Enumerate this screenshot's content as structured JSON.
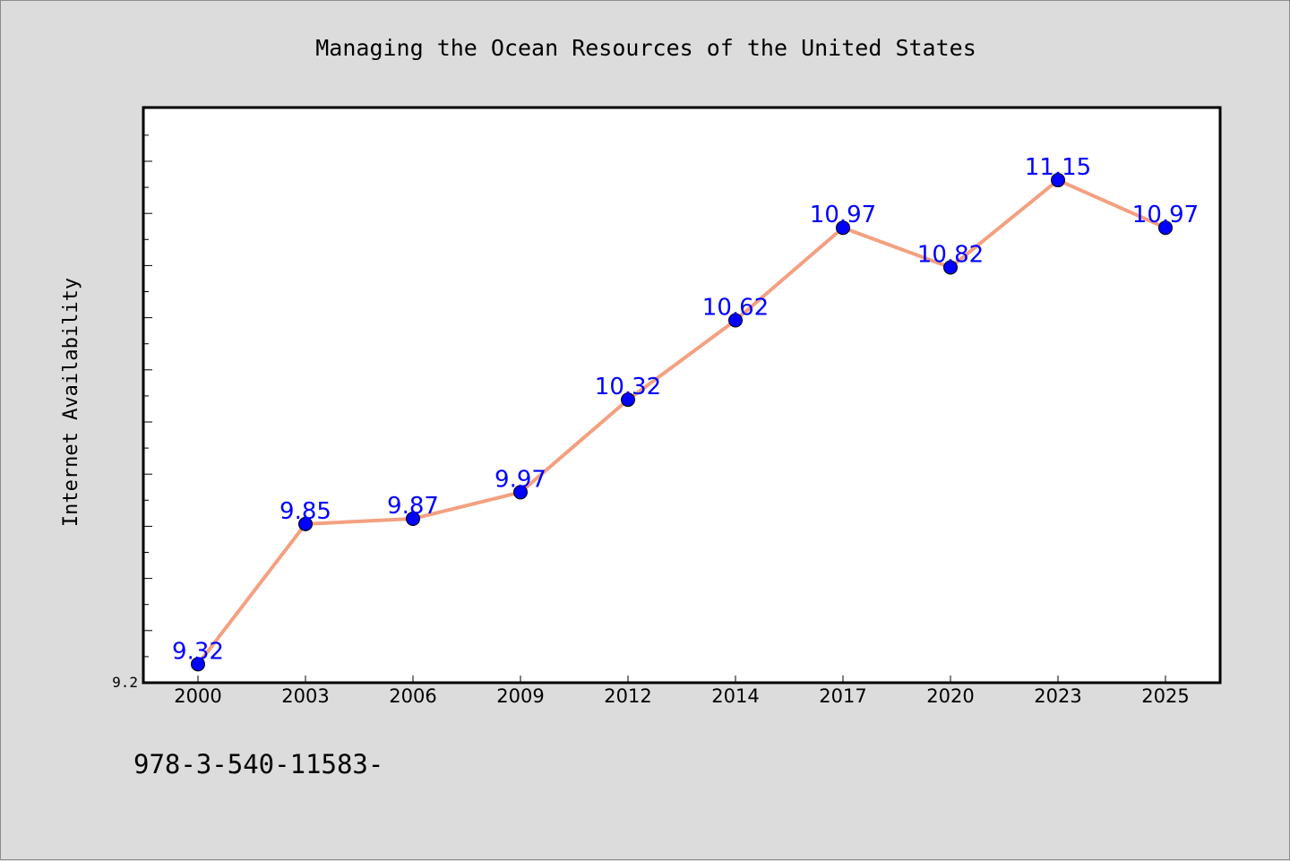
{
  "chart_data": {
    "type": "line",
    "title": "Managing the Ocean Resources of the United States",
    "xlabel": "",
    "ylabel": "Internet Availability",
    "categories": [
      "2000",
      "2003",
      "2006",
      "2009",
      "2012",
      "2014",
      "2017",
      "2020",
      "2023",
      "2025"
    ],
    "series": [
      {
        "values": [
          9.32,
          9.85,
          9.87,
          9.97,
          10.32,
          10.62,
          10.97,
          10.82,
          11.15,
          10.97
        ],
        "labels": [
          "9.32",
          "9.85",
          "9.87",
          "9.97",
          "10.32",
          "10.62",
          "10.97",
          "10.82",
          "11.15",
          "10.97"
        ],
        "line_color": "#f4a080",
        "marker_color": "#0000ff"
      }
    ],
    "ylim": [
      9.25,
      11.35
    ],
    "y_tick_labels": [
      "9.2"
    ],
    "grid": false,
    "legend": "none"
  },
  "footer": {
    "text": "978-3-540-11583-"
  },
  "colors": {
    "background": "#dcdcdc",
    "plot_area": "#ffffff",
    "label_color": "#0000ff"
  }
}
